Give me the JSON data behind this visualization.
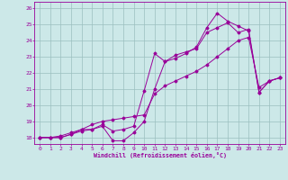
{
  "xlabel": "Windchill (Refroidissement éolien,°C)",
  "background_color": "#cce8e8",
  "grid_color": "#9bbfbf",
  "line_color": "#990099",
  "ylim": [
    17.6,
    26.4
  ],
  "xlim": [
    -0.5,
    23.5
  ],
  "yticks": [
    18,
    19,
    20,
    21,
    22,
    23,
    24,
    25,
    26
  ],
  "xticks": [
    0,
    1,
    2,
    3,
    4,
    5,
    6,
    7,
    8,
    9,
    10,
    11,
    12,
    13,
    14,
    15,
    16,
    17,
    18,
    19,
    20,
    21,
    22,
    23
  ],
  "line1_x": [
    0,
    1,
    2,
    3,
    4,
    5,
    6,
    7,
    8,
    9,
    10,
    11,
    12,
    13,
    14,
    15,
    16,
    17,
    18,
    19,
    20,
    21,
    22,
    23
  ],
  "line1_y": [
    18.0,
    18.0,
    18.0,
    18.2,
    18.5,
    18.5,
    18.7,
    17.8,
    17.8,
    18.3,
    19.0,
    21.0,
    22.7,
    23.1,
    23.3,
    23.5,
    24.5,
    24.8,
    25.1,
    24.5,
    24.7,
    20.8,
    21.5,
    21.7
  ],
  "line2_x": [
    0,
    1,
    2,
    3,
    4,
    5,
    6,
    7,
    8,
    9,
    10,
    11,
    12,
    13,
    14,
    15,
    16,
    17,
    18,
    19,
    20,
    21,
    22,
    23
  ],
  "line2_y": [
    18.0,
    18.0,
    18.0,
    18.2,
    18.4,
    18.5,
    18.8,
    18.4,
    18.5,
    18.7,
    20.9,
    23.2,
    22.7,
    22.9,
    23.2,
    23.6,
    24.8,
    25.7,
    25.2,
    24.9,
    24.6,
    20.8,
    21.5,
    21.7
  ],
  "line3_x": [
    0,
    1,
    2,
    3,
    4,
    5,
    6,
    7,
    8,
    9,
    10,
    11,
    12,
    13,
    14,
    15,
    16,
    17,
    18,
    19,
    20,
    21,
    22,
    23
  ],
  "line3_y": [
    18.0,
    18.0,
    18.1,
    18.3,
    18.5,
    18.8,
    19.0,
    19.1,
    19.2,
    19.3,
    19.4,
    20.7,
    21.2,
    21.5,
    21.8,
    22.1,
    22.5,
    23.0,
    23.5,
    24.0,
    24.2,
    21.1,
    21.5,
    21.7
  ]
}
